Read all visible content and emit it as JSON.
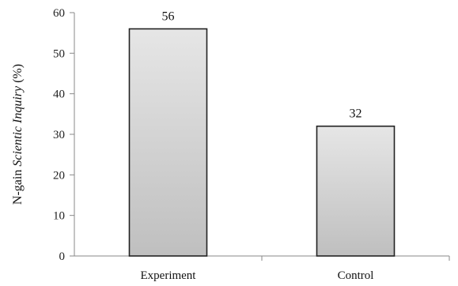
{
  "chart_data": {
    "type": "bar",
    "categories": [
      "Experiment",
      "Control"
    ],
    "values": [
      56,
      32
    ],
    "value_labels": [
      "56",
      "32"
    ],
    "ylabel": "N-gain ",
    "ylabel_italic": "Scientic Inquiry",
    "ylabel_suffix": " (%)",
    "xlabel": "",
    "title": "",
    "ylim": [
      0,
      60
    ],
    "yticks": [
      0,
      10,
      20,
      30,
      40,
      50,
      60
    ],
    "grid": false,
    "legend": "none",
    "bar_color_top": "#e6e6e6",
    "bar_color_bottom": "#bfbfbf",
    "bar_edge_color": "#222222"
  }
}
